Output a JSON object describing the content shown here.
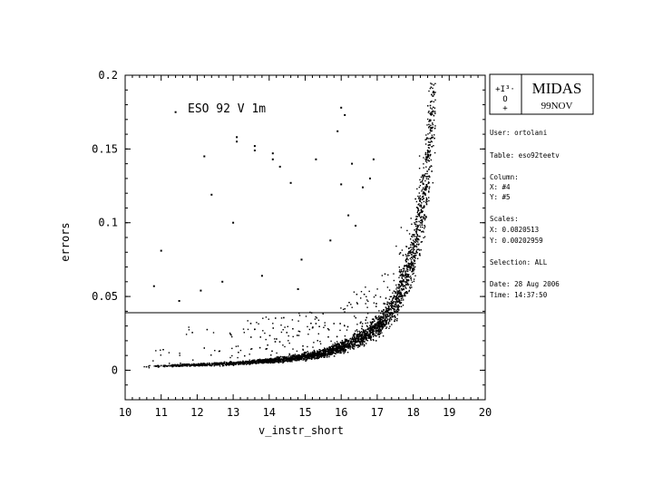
{
  "chart_data": {
    "type": "scatter",
    "title": "ESO 92 V 1m",
    "xlabel": "v_instr_short",
    "ylabel": "errors",
    "xlim": [
      10,
      20
    ],
    "ylim": [
      -0.02,
      0.2
    ],
    "x_ticks": [
      "10",
      "11",
      "12",
      "13",
      "14",
      "15",
      "16",
      "17",
      "18",
      "19",
      "20"
    ],
    "y_ticks": [
      {
        "value": 0,
        "label": "0"
      },
      {
        "value": 0.05,
        "label": "0.05"
      },
      {
        "value": 0.1,
        "label": "0.1"
      },
      {
        "value": 0.15,
        "label": "0.15"
      },
      {
        "value": 0.2,
        "label": "0.2"
      }
    ],
    "horizontal_line_y": 0.039,
    "trend": {
      "description_points_x": [
        10.5,
        12,
        13,
        14,
        14.5,
        15,
        15.5,
        16,
        16.5,
        17,
        17.5,
        18,
        18.3,
        18.6
      ],
      "description_points_y": [
        0.003,
        0.004,
        0.005,
        0.007,
        0.008,
        0.01,
        0.012,
        0.016,
        0.022,
        0.03,
        0.045,
        0.08,
        0.12,
        0.19
      ]
    },
    "outliers": [
      {
        "x": 11.0,
        "y": 0.081
      },
      {
        "x": 11.4,
        "y": 0.175
      },
      {
        "x": 12.2,
        "y": 0.145
      },
      {
        "x": 12.4,
        "y": 0.119
      },
      {
        "x": 13.0,
        "y": 0.1
      },
      {
        "x": 13.1,
        "y": 0.158
      },
      {
        "x": 13.1,
        "y": 0.155
      },
      {
        "x": 14.1,
        "y": 0.143
      },
      {
        "x": 14.3,
        "y": 0.138
      },
      {
        "x": 14.1,
        "y": 0.147
      },
      {
        "x": 14.6,
        "y": 0.127
      },
      {
        "x": 14.9,
        "y": 0.075
      },
      {
        "x": 14.8,
        "y": 0.055
      },
      {
        "x": 15.3,
        "y": 0.143
      },
      {
        "x": 15.9,
        "y": 0.162
      },
      {
        "x": 16.0,
        "y": 0.178
      },
      {
        "x": 16.1,
        "y": 0.173
      },
      {
        "x": 16.3,
        "y": 0.14
      },
      {
        "x": 16.6,
        "y": 0.124
      },
      {
        "x": 16.9,
        "y": 0.143
      },
      {
        "x": 16.8,
        "y": 0.13
      },
      {
        "x": 16.0,
        "y": 0.126
      },
      {
        "x": 16.2,
        "y": 0.105
      },
      {
        "x": 12.7,
        "y": 0.06
      },
      {
        "x": 10.8,
        "y": 0.057
      },
      {
        "x": 12.1,
        "y": 0.054
      },
      {
        "x": 11.5,
        "y": 0.047
      },
      {
        "x": 13.8,
        "y": 0.064
      },
      {
        "x": 15.7,
        "y": 0.088
      },
      {
        "x": 16.4,
        "y": 0.098
      },
      {
        "x": 13.6,
        "y": 0.152
      },
      {
        "x": 13.6,
        "y": 0.149
      }
    ],
    "grid": false
  },
  "panel": {
    "logo_text": "MIDAS",
    "logo_version": "99NOV",
    "user": "User: ortolani",
    "table": "Table: eso92teetv",
    "column_header": "Column:",
    "column_x": "X: #4",
    "column_y": "Y: #5",
    "scales_header": "Scales:",
    "scale_x": "X: 0.0820513",
    "scale_y": "Y: 0.00202959",
    "selection": "Selection:   ALL",
    "date": "Date: 28 Aug 2006",
    "time": "Time: 14:37:50"
  }
}
